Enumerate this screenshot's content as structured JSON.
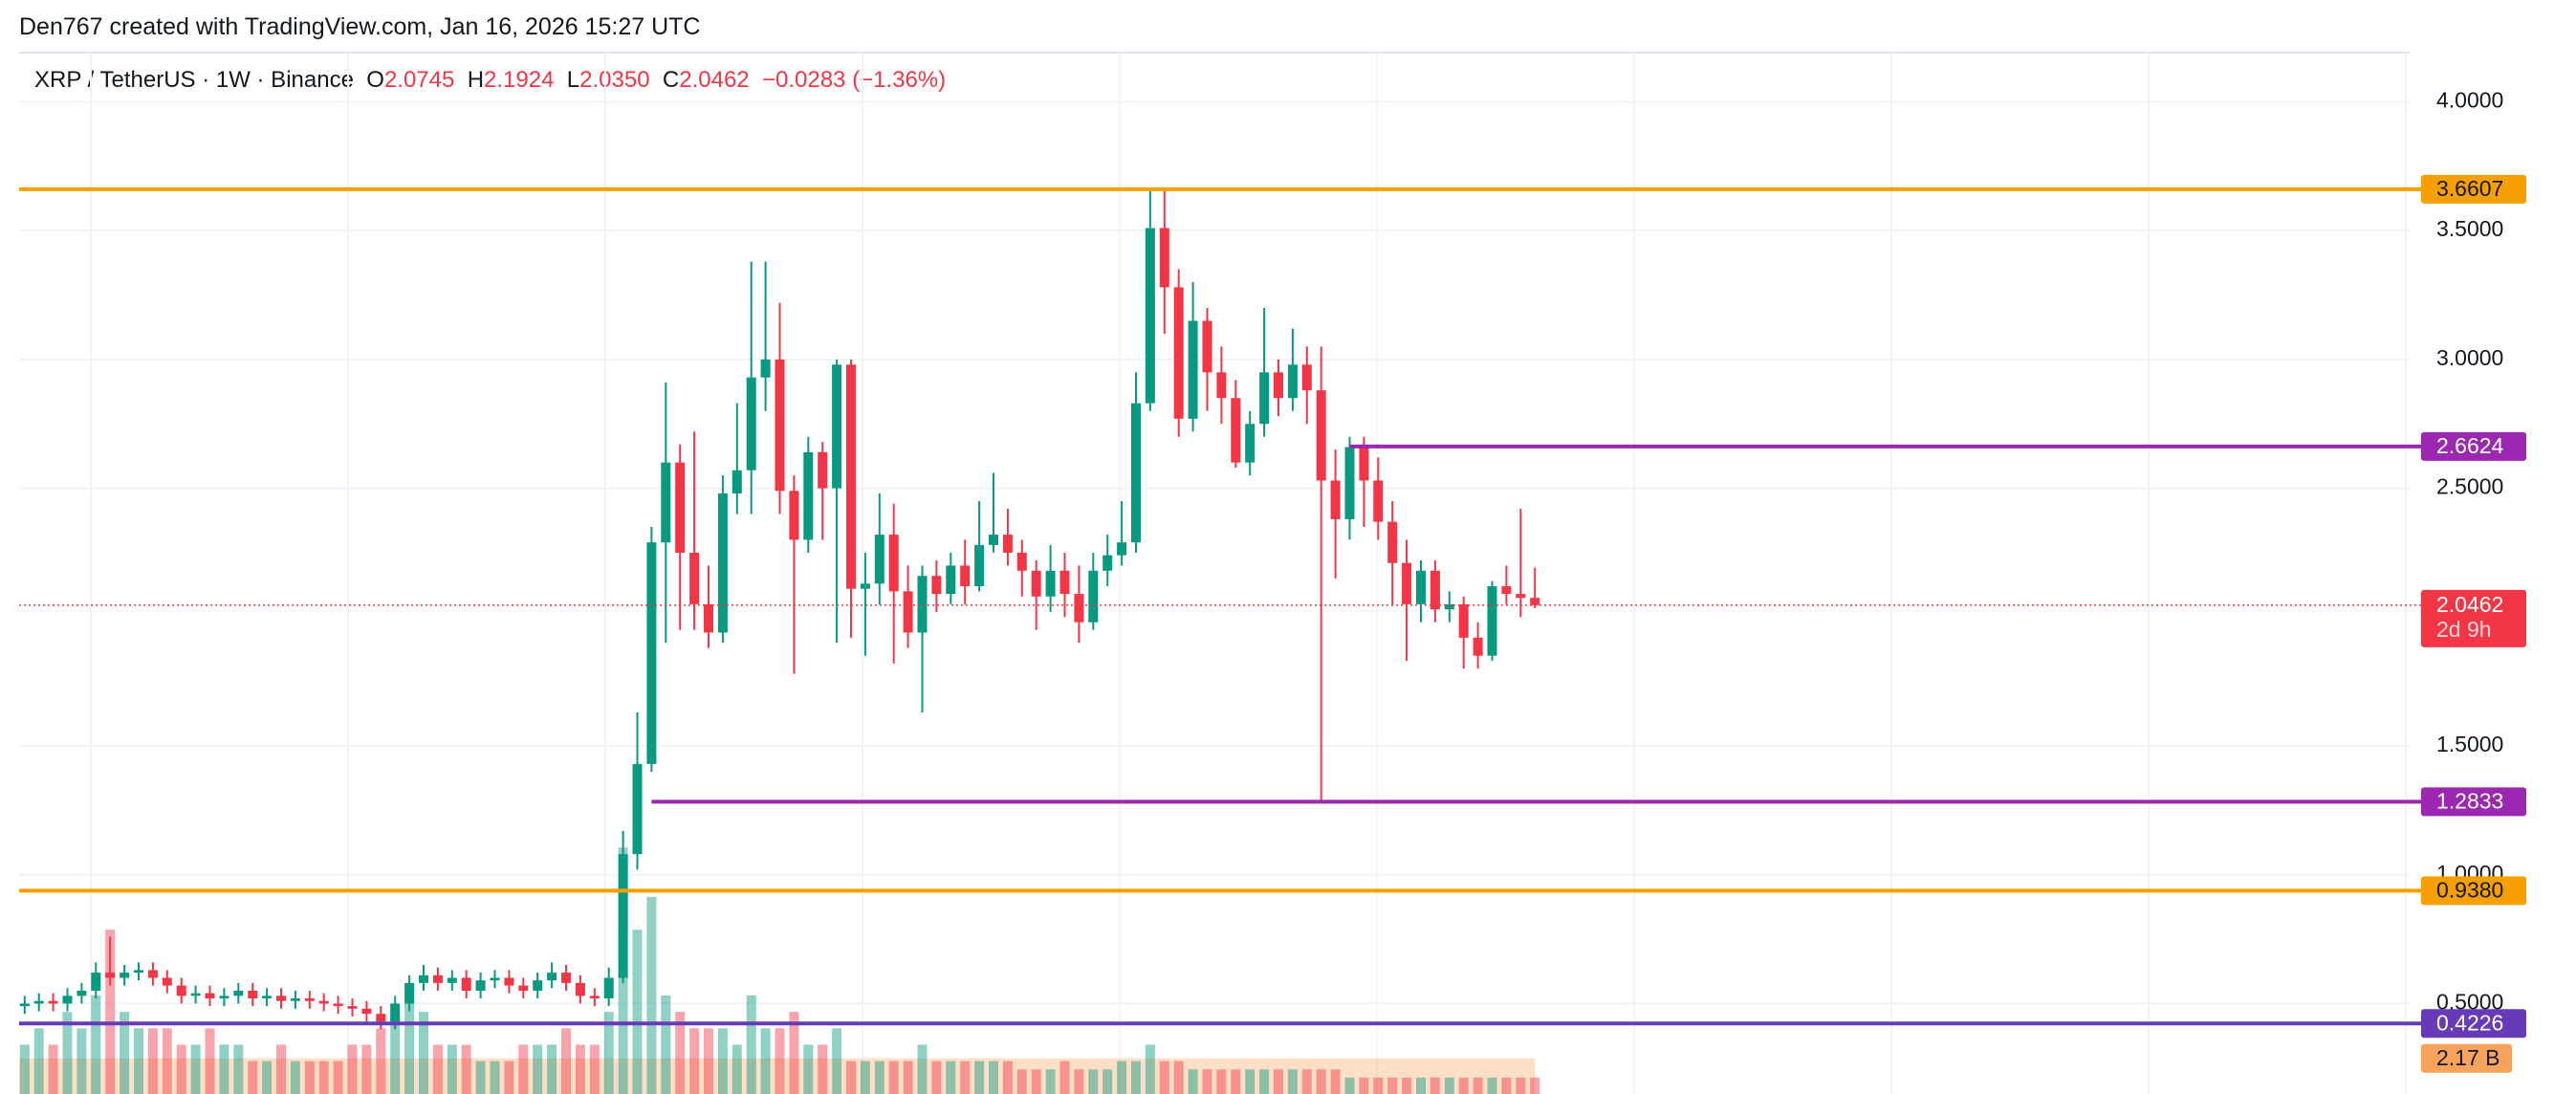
{
  "chart_data": {
    "type": "candlestick",
    "attribution": "Den767 created with TradingView.com, Jan 16, 2026 15:27 UTC",
    "legend": {
      "symbol": "XRP / TetherUS · 1W · Binance",
      "o_label": "O",
      "o": "2.0745",
      "h_label": "H",
      "h": "2.1924",
      "l_label": "L",
      "l": "2.0350",
      "c_label": "C",
      "c": "2.0462",
      "change": "−0.0283 (−1.36%)"
    },
    "up_color": "#089981",
    "down_color": "#f23645",
    "open": [
      0.49,
      0.5,
      0.51,
      0.5,
      0.53,
      0.55,
      0.62,
      0.6,
      0.62,
      0.63,
      0.6,
      0.57,
      0.53,
      0.54,
      0.52,
      0.53,
      0.55,
      0.52,
      0.53,
      0.51,
      0.52,
      0.51,
      0.5,
      0.49,
      0.48,
      0.46,
      0.43,
      0.5,
      0.58,
      0.61,
      0.58,
      0.6,
      0.55,
      0.59,
      0.6,
      0.57,
      0.55,
      0.59,
      0.62,
      0.58,
      0.53,
      0.52,
      0.6,
      1.08,
      1.43,
      2.29,
      2.6,
      2.25,
      2.05,
      1.94,
      2.48,
      2.57,
      2.93,
      3.0,
      2.49,
      2.3,
      2.64,
      2.5,
      2.98,
      2.11,
      2.13,
      2.32,
      2.1,
      1.94,
      2.16,
      2.09,
      2.2,
      2.12,
      2.28,
      2.32,
      2.25,
      2.18,
      2.08,
      2.18,
      2.09,
      1.98,
      2.18,
      2.24,
      2.29,
      2.83,
      3.51,
      3.28,
      2.77,
      3.15,
      2.95,
      2.85,
      2.6,
      2.75,
      2.95,
      2.85,
      2.98,
      2.88,
      2.53,
      2.38,
      2.66,
      2.53,
      2.37,
      2.21,
      2.05,
      2.18,
      2.03,
      2.05,
      1.92,
      1.85,
      2.12,
      2.09,
      2.0745
    ],
    "high": [
      0.53,
      0.54,
      0.54,
      0.56,
      0.58,
      0.66,
      0.76,
      0.65,
      0.66,
      0.66,
      0.63,
      0.6,
      0.57,
      0.57,
      0.56,
      0.58,
      0.58,
      0.56,
      0.56,
      0.55,
      0.55,
      0.54,
      0.53,
      0.52,
      0.51,
      0.49,
      0.53,
      0.61,
      0.65,
      0.64,
      0.63,
      0.63,
      0.62,
      0.63,
      0.63,
      0.6,
      0.62,
      0.66,
      0.65,
      0.61,
      0.56,
      0.64,
      1.17,
      1.63,
      2.35,
      2.91,
      2.67,
      2.72,
      2.2,
      2.55,
      2.83,
      3.38,
      3.38,
      3.22,
      2.55,
      2.7,
      2.68,
      3.0,
      3.0,
      2.25,
      2.48,
      2.44,
      2.2,
      2.2,
      2.22,
      2.25,
      2.3,
      2.45,
      2.56,
      2.42,
      2.3,
      2.22,
      2.28,
      2.25,
      2.2,
      2.25,
      2.32,
      2.45,
      2.95,
      3.66,
      3.66,
      3.35,
      3.3,
      3.2,
      3.05,
      2.92,
      2.8,
      3.2,
      3.0,
      3.12,
      3.05,
      3.05,
      2.65,
      2.7,
      2.7,
      2.62,
      2.45,
      2.3,
      2.22,
      2.22,
      2.1,
      2.08,
      1.98,
      2.14,
      2.2,
      2.42,
      2.1924
    ],
    "low": [
      0.46,
      0.47,
      0.47,
      0.47,
      0.5,
      0.52,
      0.57,
      0.57,
      0.59,
      0.57,
      0.54,
      0.5,
      0.5,
      0.49,
      0.49,
      0.5,
      0.49,
      0.49,
      0.48,
      0.48,
      0.48,
      0.47,
      0.46,
      0.45,
      0.43,
      0.4,
      0.4,
      0.47,
      0.55,
      0.55,
      0.55,
      0.52,
      0.52,
      0.56,
      0.54,
      0.52,
      0.52,
      0.56,
      0.55,
      0.5,
      0.49,
      0.49,
      0.58,
      1.02,
      1.4,
      1.9,
      1.95,
      1.95,
      1.88,
      1.9,
      2.4,
      2.4,
      2.8,
      2.4,
      1.78,
      2.25,
      2.3,
      1.9,
      1.92,
      1.85,
      2.05,
      1.82,
      1.88,
      1.63,
      2.02,
      2.05,
      2.05,
      2.1,
      2.25,
      2.2,
      2.08,
      1.95,
      2.02,
      2.0,
      1.9,
      1.95,
      2.12,
      2.2,
      2.25,
      2.8,
      3.1,
      2.7,
      2.72,
      2.8,
      2.75,
      2.58,
      2.55,
      2.7,
      2.78,
      2.8,
      2.75,
      1.28,
      2.15,
      2.3,
      2.35,
      2.3,
      2.05,
      1.83,
      1.98,
      1.98,
      1.98,
      1.8,
      1.8,
      1.83,
      2.05,
      2.0,
      2.035
    ],
    "close": [
      0.5,
      0.51,
      0.5,
      0.53,
      0.55,
      0.62,
      0.6,
      0.62,
      0.63,
      0.6,
      0.57,
      0.53,
      0.54,
      0.52,
      0.53,
      0.55,
      0.52,
      0.53,
      0.51,
      0.52,
      0.51,
      0.5,
      0.49,
      0.48,
      0.46,
      0.43,
      0.5,
      0.58,
      0.61,
      0.58,
      0.6,
      0.55,
      0.59,
      0.6,
      0.57,
      0.55,
      0.59,
      0.62,
      0.58,
      0.53,
      0.52,
      0.6,
      1.08,
      1.43,
      2.29,
      2.6,
      2.25,
      2.05,
      1.94,
      2.48,
      2.57,
      2.93,
      3.0,
      2.49,
      2.3,
      2.64,
      2.5,
      2.98,
      2.11,
      2.13,
      2.32,
      2.1,
      1.94,
      2.16,
      2.09,
      2.2,
      2.12,
      2.28,
      2.32,
      2.25,
      2.18,
      2.08,
      2.18,
      2.09,
      1.98,
      2.18,
      2.24,
      2.29,
      2.83,
      3.51,
      3.28,
      2.77,
      3.15,
      2.95,
      2.85,
      2.6,
      2.75,
      2.95,
      2.85,
      2.98,
      2.88,
      2.53,
      2.38,
      2.66,
      2.53,
      2.37,
      2.21,
      2.05,
      2.18,
      2.03,
      2.05,
      1.92,
      1.85,
      2.12,
      2.09,
      2.0745,
      2.0462
    ],
    "volume": [
      3,
      4,
      3,
      5,
      4,
      6,
      10,
      5,
      4,
      4,
      4,
      3,
      3,
      4,
      3,
      3,
      2,
      2,
      3,
      2,
      2,
      2,
      2,
      3,
      3,
      4,
      5,
      6,
      5,
      3,
      3,
      3,
      2,
      2,
      2,
      3,
      3,
      3,
      4,
      3,
      3,
      5,
      15,
      10,
      12,
      6,
      5,
      4,
      4,
      4,
      3,
      6,
      4,
      4,
      5,
      3,
      3,
      4,
      2,
      2,
      2,
      2,
      2,
      3,
      2,
      2,
      2,
      2,
      2,
      2,
      1.5,
      1.5,
      1.5,
      2,
      1.5,
      1.5,
      1.5,
      2,
      2,
      3,
      2,
      2,
      1.5,
      1.5,
      1.5,
      1.5,
      1.5,
      1.5,
      1.5,
      1.5,
      1.5,
      1.5,
      1.5,
      1,
      1,
      1,
      1,
      1,
      1,
      1,
      1,
      1,
      1,
      1,
      1,
      1,
      1
    ],
    "volume_ma": {
      "value": 2.17,
      "label": "2.17 B"
    },
    "ylim": [
      0.149,
      4.191
    ],
    "yticks": [
      {
        "value": 0.5,
        "label": "0.5000"
      },
      {
        "value": 1,
        "label": "1.0000"
      },
      {
        "value": 1.5,
        "label": "1.5000"
      },
      {
        "value": 2.5,
        "label": "2.5000"
      },
      {
        "value": 3,
        "label": "3.0000"
      },
      {
        "value": 3.5,
        "label": "3.5000"
      },
      {
        "value": 4,
        "label": "4.0000"
      }
    ],
    "grid": true,
    "levels": [
      {
        "value": 3.6607,
        "label": "3.6607",
        "color": "#f59f00"
      },
      {
        "value": 2.6624,
        "label": "2.6624",
        "color": "#9c27b0"
      },
      {
        "value": 1.2833,
        "label": "1.2833",
        "color": "#9c27b0"
      },
      {
        "value": 0.938,
        "label": "0.9380",
        "color": "#f59f00"
      },
      {
        "value": 0.4226,
        "label": "0.4226",
        "color": "#673ab7"
      }
    ],
    "last_price": {
      "value": 2.0462,
      "label": "2.0462"
    },
    "countdown": "2d 9h"
  }
}
